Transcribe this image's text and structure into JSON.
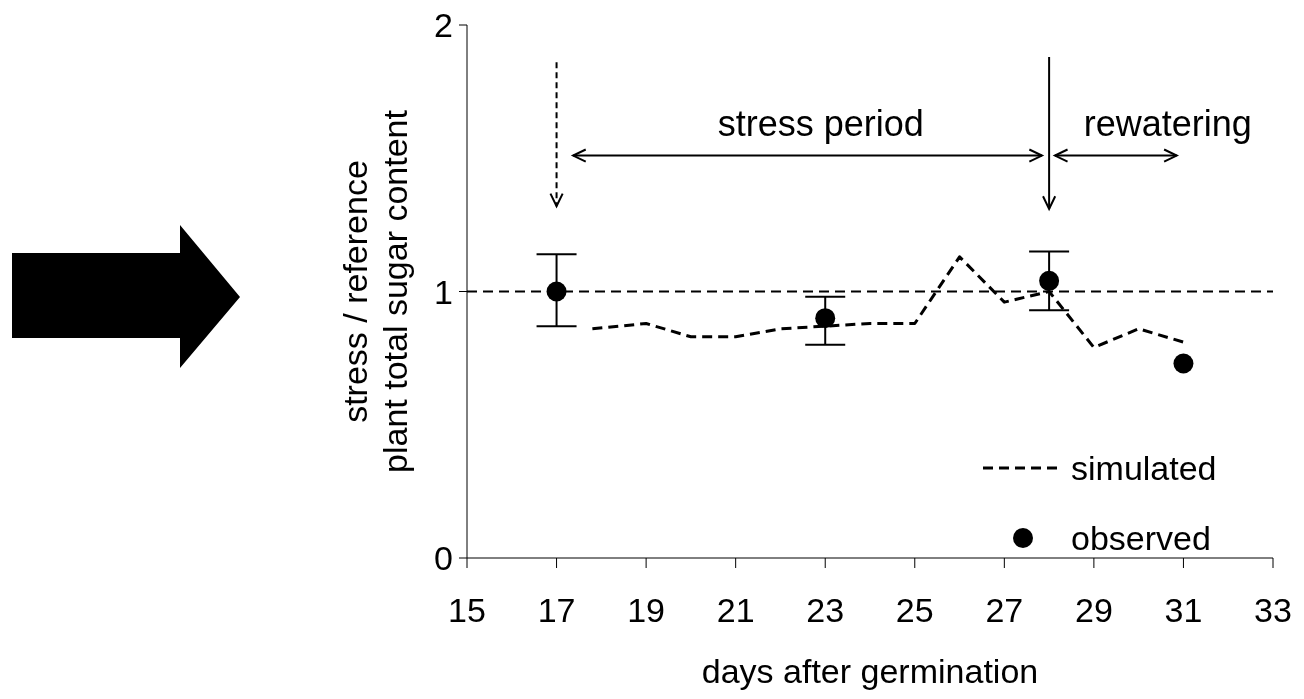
{
  "chart_data": {
    "type": "line",
    "xlabel": "days after germination",
    "ylabel": "stress / reference\nplant total sugar content",
    "xlim": [
      15,
      33
    ],
    "xticks": [
      15,
      17,
      19,
      21,
      23,
      25,
      27,
      29,
      31,
      33
    ],
    "ylim": [
      0,
      2
    ],
    "yticks": [
      0,
      1,
      2
    ],
    "grid": false,
    "legend": "bottom right",
    "series": [
      {
        "name": "simulated",
        "color": "#000000",
        "line_style": "dashed",
        "marker": "none",
        "x": [
          17.8,
          19,
          20,
          21,
          22,
          23,
          24,
          25,
          26,
          27,
          28,
          29,
          30,
          31
        ],
        "values": [
          0.86,
          0.88,
          0.83,
          0.83,
          0.86,
          0.87,
          0.88,
          0.88,
          1.13,
          0.96,
          1.0,
          0.79,
          0.86,
          0.81
        ]
      },
      {
        "name": "observed",
        "type": "scatter",
        "color": "#000000",
        "marker": "circle",
        "x": [
          17,
          23,
          28,
          31
        ],
        "values": [
          1.0,
          0.9,
          1.04,
          0.73
        ],
        "errors": [
          [
            0.87,
            1.14
          ],
          [
            0.8,
            0.98
          ],
          [
            0.93,
            1.15
          ],
          null
        ]
      }
    ],
    "ref_lines": [
      {
        "axis": "y",
        "value": 1,
        "color": "#000000",
        "line_style": "dashed"
      }
    ],
    "annotations": [
      "stress period",
      "rewatering"
    ]
  }
}
